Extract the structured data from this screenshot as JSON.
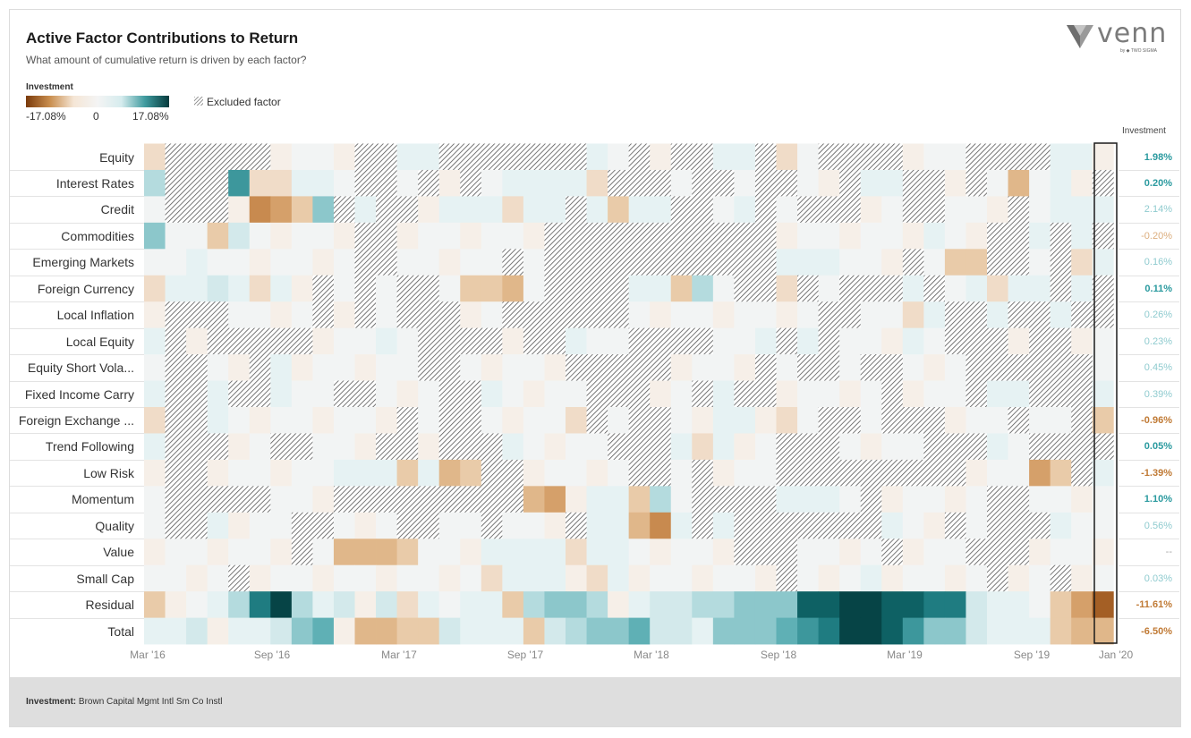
{
  "header": {
    "title": "Active Factor Contributions to Return",
    "subtitle": "What amount of cumulative return is driven by each factor?"
  },
  "legend": {
    "title": "Investment",
    "min_label": "-17.08%",
    "mid_label": "0",
    "max_label": "17.08%",
    "excluded_label": "Excluded factor"
  },
  "logo": {
    "text": "venn",
    "sub": "by ◆ TWO SIGMA"
  },
  "column_header": "Investment",
  "footer": {
    "label": "Investment:",
    "value": "Brown Capital Mgmt Intl Sm Co Instl"
  },
  "colors": {
    "negative": "#b56a25",
    "positive": "#1a7f82",
    "excluded_hatch": "#555555"
  },
  "chart_data": {
    "type": "heatmap",
    "x_tick_labels": [
      "Mar '16",
      "Sep '16",
      "Mar '17",
      "Sep '17",
      "Mar '18",
      "Sep '18",
      "Mar '19",
      "Sep '19",
      "Jan '20"
    ],
    "color_range": [
      -17.08,
      17.08
    ],
    "factors": [
      {
        "name": "Equity",
        "investment": "1.98%",
        "emph": true
      },
      {
        "name": "Interest Rates",
        "investment": "0.20%",
        "emph": true
      },
      {
        "name": "Credit",
        "investment": "2.14%",
        "emph": false
      },
      {
        "name": "Commodities",
        "investment": "-0.20%",
        "emph": false
      },
      {
        "name": "Emerging Markets",
        "investment": "0.16%",
        "emph": false
      },
      {
        "name": "Foreign Currency",
        "investment": "0.11%",
        "emph": true
      },
      {
        "name": "Local Inflation",
        "investment": "0.26%",
        "emph": false
      },
      {
        "name": "Local Equity",
        "investment": "0.23%",
        "emph": false
      },
      {
        "name": "Equity Short Vola...",
        "investment": "0.45%",
        "emph": false
      },
      {
        "name": "Fixed Income Carry",
        "investment": "0.39%",
        "emph": false
      },
      {
        "name": "Foreign Exchange ...",
        "investment": "-0.96%",
        "emph": true
      },
      {
        "name": "Trend Following",
        "investment": "0.05%",
        "emph": true
      },
      {
        "name": "Low Risk",
        "investment": "-1.39%",
        "emph": true
      },
      {
        "name": "Momentum",
        "investment": "1.10%",
        "emph": true
      },
      {
        "name": "Quality",
        "investment": "0.56%",
        "emph": false
      },
      {
        "name": "Value",
        "investment": "--",
        "emph": false
      },
      {
        "name": "Small Cap",
        "investment": "0.03%",
        "emph": false
      },
      {
        "name": "Residual",
        "investment": "-11.61%",
        "emph": true
      },
      {
        "name": "Total",
        "investment": "-6.50%",
        "emph": true
      }
    ],
    "cell_key": "X = excluded factor; otherwise signed intensity -9..9 (negative = brown, positive = teal)",
    "cells": [
      "1XXXXX0000XX11XXXXXXX10X0XX11X10XXXX000XXXX11",
      "3XXX6X1110XX0X0X011111XXX0XX0XX00X11XX0X0X010XX1",
      "0XXX0X644X1XX0111111X1211XX01X0XXX00XX000X01110XXX0000XX11",
      "4000200000XX0000000XXXXXXXXXXX0000000100XX1X1X0000XXXXX00100X00X0",
      "0010000000XX00000X0XXXXXXXXXXX111000X0X0XX0X112X0XX1001X0XXX",
      "11121110X0X0XX00000XXXX11230XX1X0XXX1X01111X1X00XXXX1X0XXXXXXX",
      "0XXX0000X0X0XXX00XXXXXX000000000XX0011XX1XX1XX0XX10000X1000",
      "1X0XXXXX00010XXXX0XX100XXXX001X1X00010XXX0XX00XX10000XX0000",
      "0XX00X1000000XX00000XXXXX0000X0XX0XX000XXXXXX0XX0XX10000100",
      "1XX1XX100XX000XX10000XXX00X1XX00000X000X11XXX11XX0XX1110X",
      "1XX100000000X0XX00000X0XX0011010XX0XXX000X00XX1XXX0000X100X",
      "1XXX00XX000XX0XXX10000XXX11100XXX0000XXX10XXXX00000X1XXX0",
      "0XX000000111211XXX00000XX0X000XXXXXXXXX0000XX1002X11X000",
      "0XXXXX000XXXXXXXXX00011230XXXX1110X00000XX0000000XX0003450XX1",
      "0XX1000XX000XX00X000X11121X1XXXXXXX100X0XXX1000001X0X00",
      "0000000X01221000111111100000XXX0000X000XXX00000X0X0X20X",
      "0000X0000000000011110110000000X000100000X00X0000X000X1000X0",
      "10013793120211011234430122334448899887721100010500001101222",
      "1120112450122221112234452214445679986442111100334321000122"
    ]
  }
}
